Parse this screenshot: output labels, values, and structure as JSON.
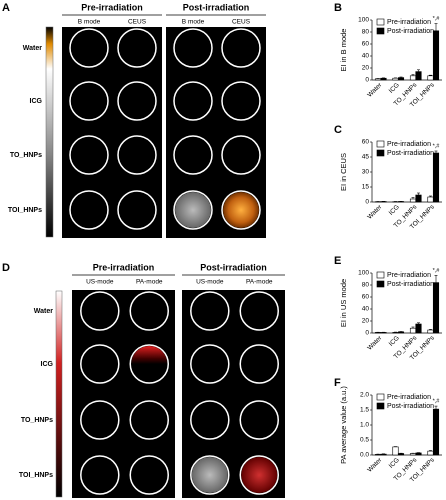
{
  "panel_a": {
    "label": "A",
    "groups": [
      "Pre-irradiation",
      "Post-irradiation"
    ],
    "modes": [
      "B mode",
      "CEUS",
      "B mode",
      "CEUS"
    ],
    "rows": [
      "Water",
      "ICG",
      "TO_HNPs",
      "TOI_HNPs"
    ]
  },
  "panel_d": {
    "label": "D",
    "groups": [
      "Pre-irradiation",
      "Post-irradiation"
    ],
    "modes": [
      "US-mode",
      "PA-mode",
      "US-mode",
      "PA-mode"
    ],
    "rows": [
      "Water",
      "ICG",
      "TO_HNPs",
      "TOI_HNPs"
    ]
  },
  "chart_data": [
    {
      "type": "bar",
      "panel_label": "B",
      "y_label": "EI in B mode",
      "categories": [
        "Water",
        "ICG",
        "TO_HNPs",
        "TOI_HNPs"
      ],
      "series": [
        {
          "name": "Pre-irradiation",
          "color": "#ffffff",
          "values": [
            2,
            3,
            7,
            7
          ],
          "errors": [
            0.5,
            0.5,
            2,
            1
          ]
        },
        {
          "name": "Post-irradiation",
          "color": "#000000",
          "values": [
            3,
            4,
            14,
            82
          ],
          "errors": [
            0.5,
            1,
            3,
            12
          ]
        }
      ],
      "annotation": "*,#",
      "ylim": [
        0,
        100
      ],
      "yticks": [
        0,
        20,
        40,
        60,
        80,
        100
      ]
    },
    {
      "type": "bar",
      "panel_label": "C",
      "y_label": "EI in CEUS",
      "categories": [
        "Water",
        "ICG",
        "TO_HNPs",
        "TOI_HNPs"
      ],
      "series": [
        {
          "name": "Pre-irradiation",
          "color": "#ffffff",
          "values": [
            0.3,
            0.3,
            3,
            5
          ],
          "errors": [
            0.2,
            0.2,
            1.5,
            1
          ]
        },
        {
          "name": "Post-irradiation",
          "color": "#000000",
          "values": [
            0.5,
            0.5,
            7,
            49
          ],
          "errors": [
            0.2,
            0.2,
            2,
            2
          ]
        }
      ],
      "annotation": "*,#",
      "ylim": [
        0,
        60
      ],
      "yticks": [
        0,
        15,
        30,
        45,
        60
      ]
    },
    {
      "type": "bar",
      "panel_label": "E",
      "y_label": "EI in US mode",
      "categories": [
        "Water",
        "ICG",
        "TO_HNPs",
        "TOI_HNPs"
      ],
      "series": [
        {
          "name": "Pre-irradiation",
          "color": "#ffffff",
          "values": [
            1,
            1,
            8,
            5
          ],
          "errors": [
            0.3,
            0.5,
            2,
            1
          ]
        },
        {
          "name": "Post-irradiation",
          "color": "#000000",
          "values": [
            1,
            2,
            15,
            84
          ],
          "errors": [
            0.3,
            0.5,
            2,
            12
          ]
        }
      ],
      "annotation": "*,#",
      "ylim": [
        0,
        100
      ],
      "yticks": [
        0,
        20,
        40,
        60,
        80,
        100
      ]
    },
    {
      "type": "bar",
      "panel_label": "F",
      "y_label": "PA average value (a.u.)",
      "categories": [
        "Water",
        "ICG",
        "TO_HNPs",
        "TOI_HNPs"
      ],
      "series": [
        {
          "name": "Pre-irradiation",
          "color": "#ffffff",
          "values": [
            0.02,
            0.27,
            0.05,
            0.13
          ],
          "errors": [
            0.01,
            0.01,
            0.01,
            0.02
          ]
        },
        {
          "name": "Post-irradiation",
          "color": "#000000",
          "values": [
            0.03,
            0.05,
            0.07,
            1.53
          ],
          "errors": [
            0.01,
            0.01,
            0.01,
            0.1
          ]
        }
      ],
      "annotation": "*,#",
      "ylim": [
        0,
        2
      ],
      "yticks": [
        {
          "value": 0,
          "label": "0.0"
        },
        {
          "value": 0.5,
          "label": "0.5"
        },
        {
          "value": 1,
          "label": "1.0"
        },
        {
          "value": 1.5,
          "label": "1.5"
        },
        {
          "value": 2,
          "label": "2.0"
        }
      ]
    }
  ]
}
